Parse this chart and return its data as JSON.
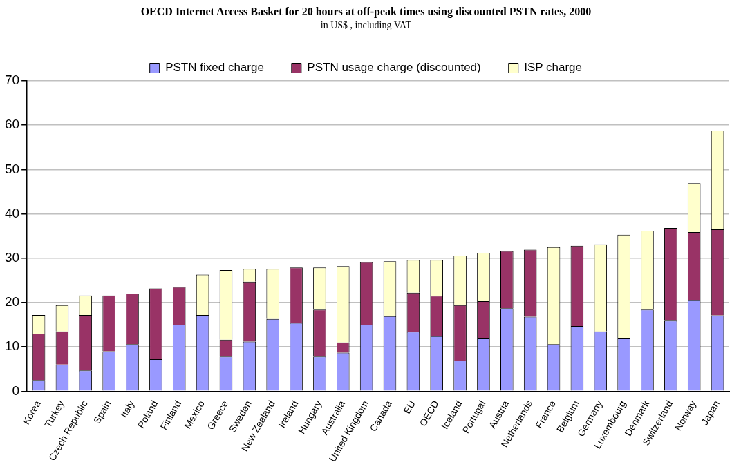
{
  "chart_data": {
    "type": "bar",
    "title": "OECD Internet Access Basket for 20 hours at off-peak times using discounted PSTN rates, 2000",
    "subtitle": "in US$ , including VAT",
    "categories": [
      "Korea",
      "Turkey",
      "Czech Republic",
      "Spain",
      "Italy",
      "Poland",
      "Finland",
      "Mexico",
      "Greece",
      "Sweden",
      "New Zealand",
      "Ireland",
      "Hungary",
      "Australia",
      "United Kingdom",
      "Canada",
      "EU",
      "OECD",
      "Iceland",
      "Portugal",
      "Austria",
      "Netherlands",
      "France",
      "Belgium",
      "Germany",
      "Luxembourg",
      "Denmark",
      "Switzerland",
      "Norway",
      "Japan"
    ],
    "stacked": true,
    "series": [
      {
        "name": "PSTN fixed charge",
        "color": "#9999ff",
        "values": [
          2.5,
          6,
          4.7,
          9,
          10.6,
          7.2,
          15,
          17.2,
          7.8,
          11.2,
          16.3,
          15.4,
          7.8,
          8.7,
          15,
          16.9,
          13.4,
          12.4,
          6.9,
          11.9,
          18.7,
          16.8,
          10.6,
          14.7,
          13.5,
          11.9,
          18.4,
          15.9,
          20.5,
          17.1
        ]
      },
      {
        "name": "PSTN usage charge (discounted)",
        "color": "#993366",
        "values": [
          10.5,
          7.5,
          12.5,
          12.6,
          11.4,
          16,
          8.5,
          null,
          3.8,
          13.5,
          null,
          12.5,
          10.6,
          2.3,
          14.1,
          null,
          8.8,
          9.1,
          12.5,
          8.4,
          12.9,
          15.1,
          null,
          18.1,
          null,
          null,
          null,
          20.9,
          15.4,
          19.4
        ]
      },
      {
        "name": "ISP charge",
        "color": "#ffffcc",
        "values": [
          4.2,
          5.9,
          4.4,
          null,
          null,
          null,
          null,
          9.1,
          15.7,
          2.9,
          11.3,
          null,
          9.5,
          17.2,
          null,
          12.4,
          7.4,
          8.1,
          11.2,
          10.9,
          null,
          null,
          21.9,
          null,
          19.6,
          23.4,
          17.8,
          null,
          11,
          22.3
        ]
      }
    ],
    "ylim": [
      0,
      70
    ],
    "yticks": [
      0,
      10,
      20,
      30,
      40,
      50,
      60,
      70
    ],
    "grid": "y",
    "legend": "top"
  }
}
